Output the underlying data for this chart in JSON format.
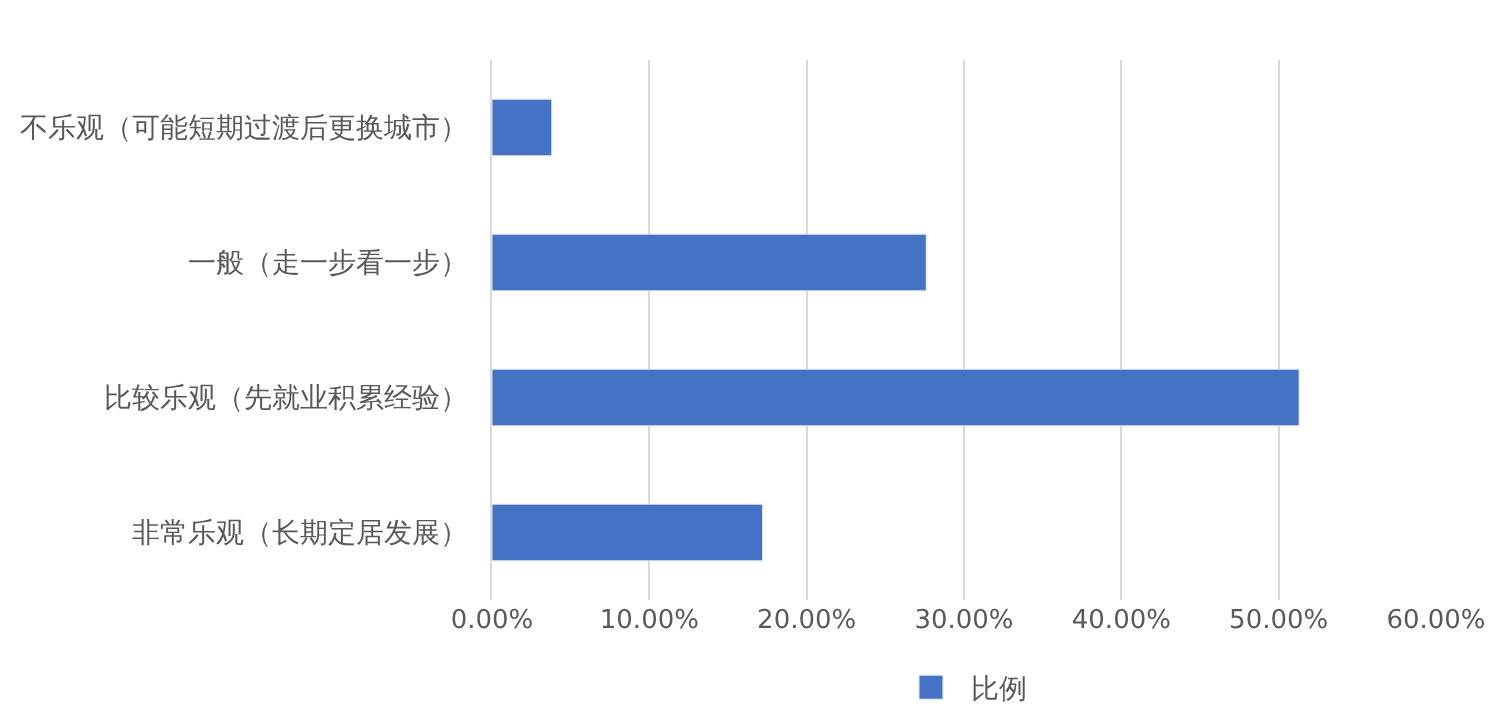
{
  "chart_data": {
    "type": "bar",
    "orientation": "horizontal",
    "categories": [
      "不乐观（可能短期过渡后更换城市）",
      "一般（走一步看一步）",
      "比较乐观（先就业积累经验）",
      "非常乐观（长期定居发展）"
    ],
    "series": [
      {
        "name": "比例",
        "color": "#4472c4",
        "values": [
          3.8,
          27.6,
          51.3,
          17.2
        ]
      }
    ],
    "xlim": [
      0,
      60
    ],
    "xticks": [
      {
        "value": 0,
        "label": "0.00%"
      },
      {
        "value": 10,
        "label": "10.00%"
      },
      {
        "value": 20,
        "label": "20.00%"
      },
      {
        "value": 30,
        "label": "30.00%"
      },
      {
        "value": 40,
        "label": "40.00%"
      },
      {
        "value": 50,
        "label": "50.00%"
      },
      {
        "value": 60,
        "label": "60.00%"
      }
    ],
    "grid": "x",
    "legend": "bottom"
  }
}
